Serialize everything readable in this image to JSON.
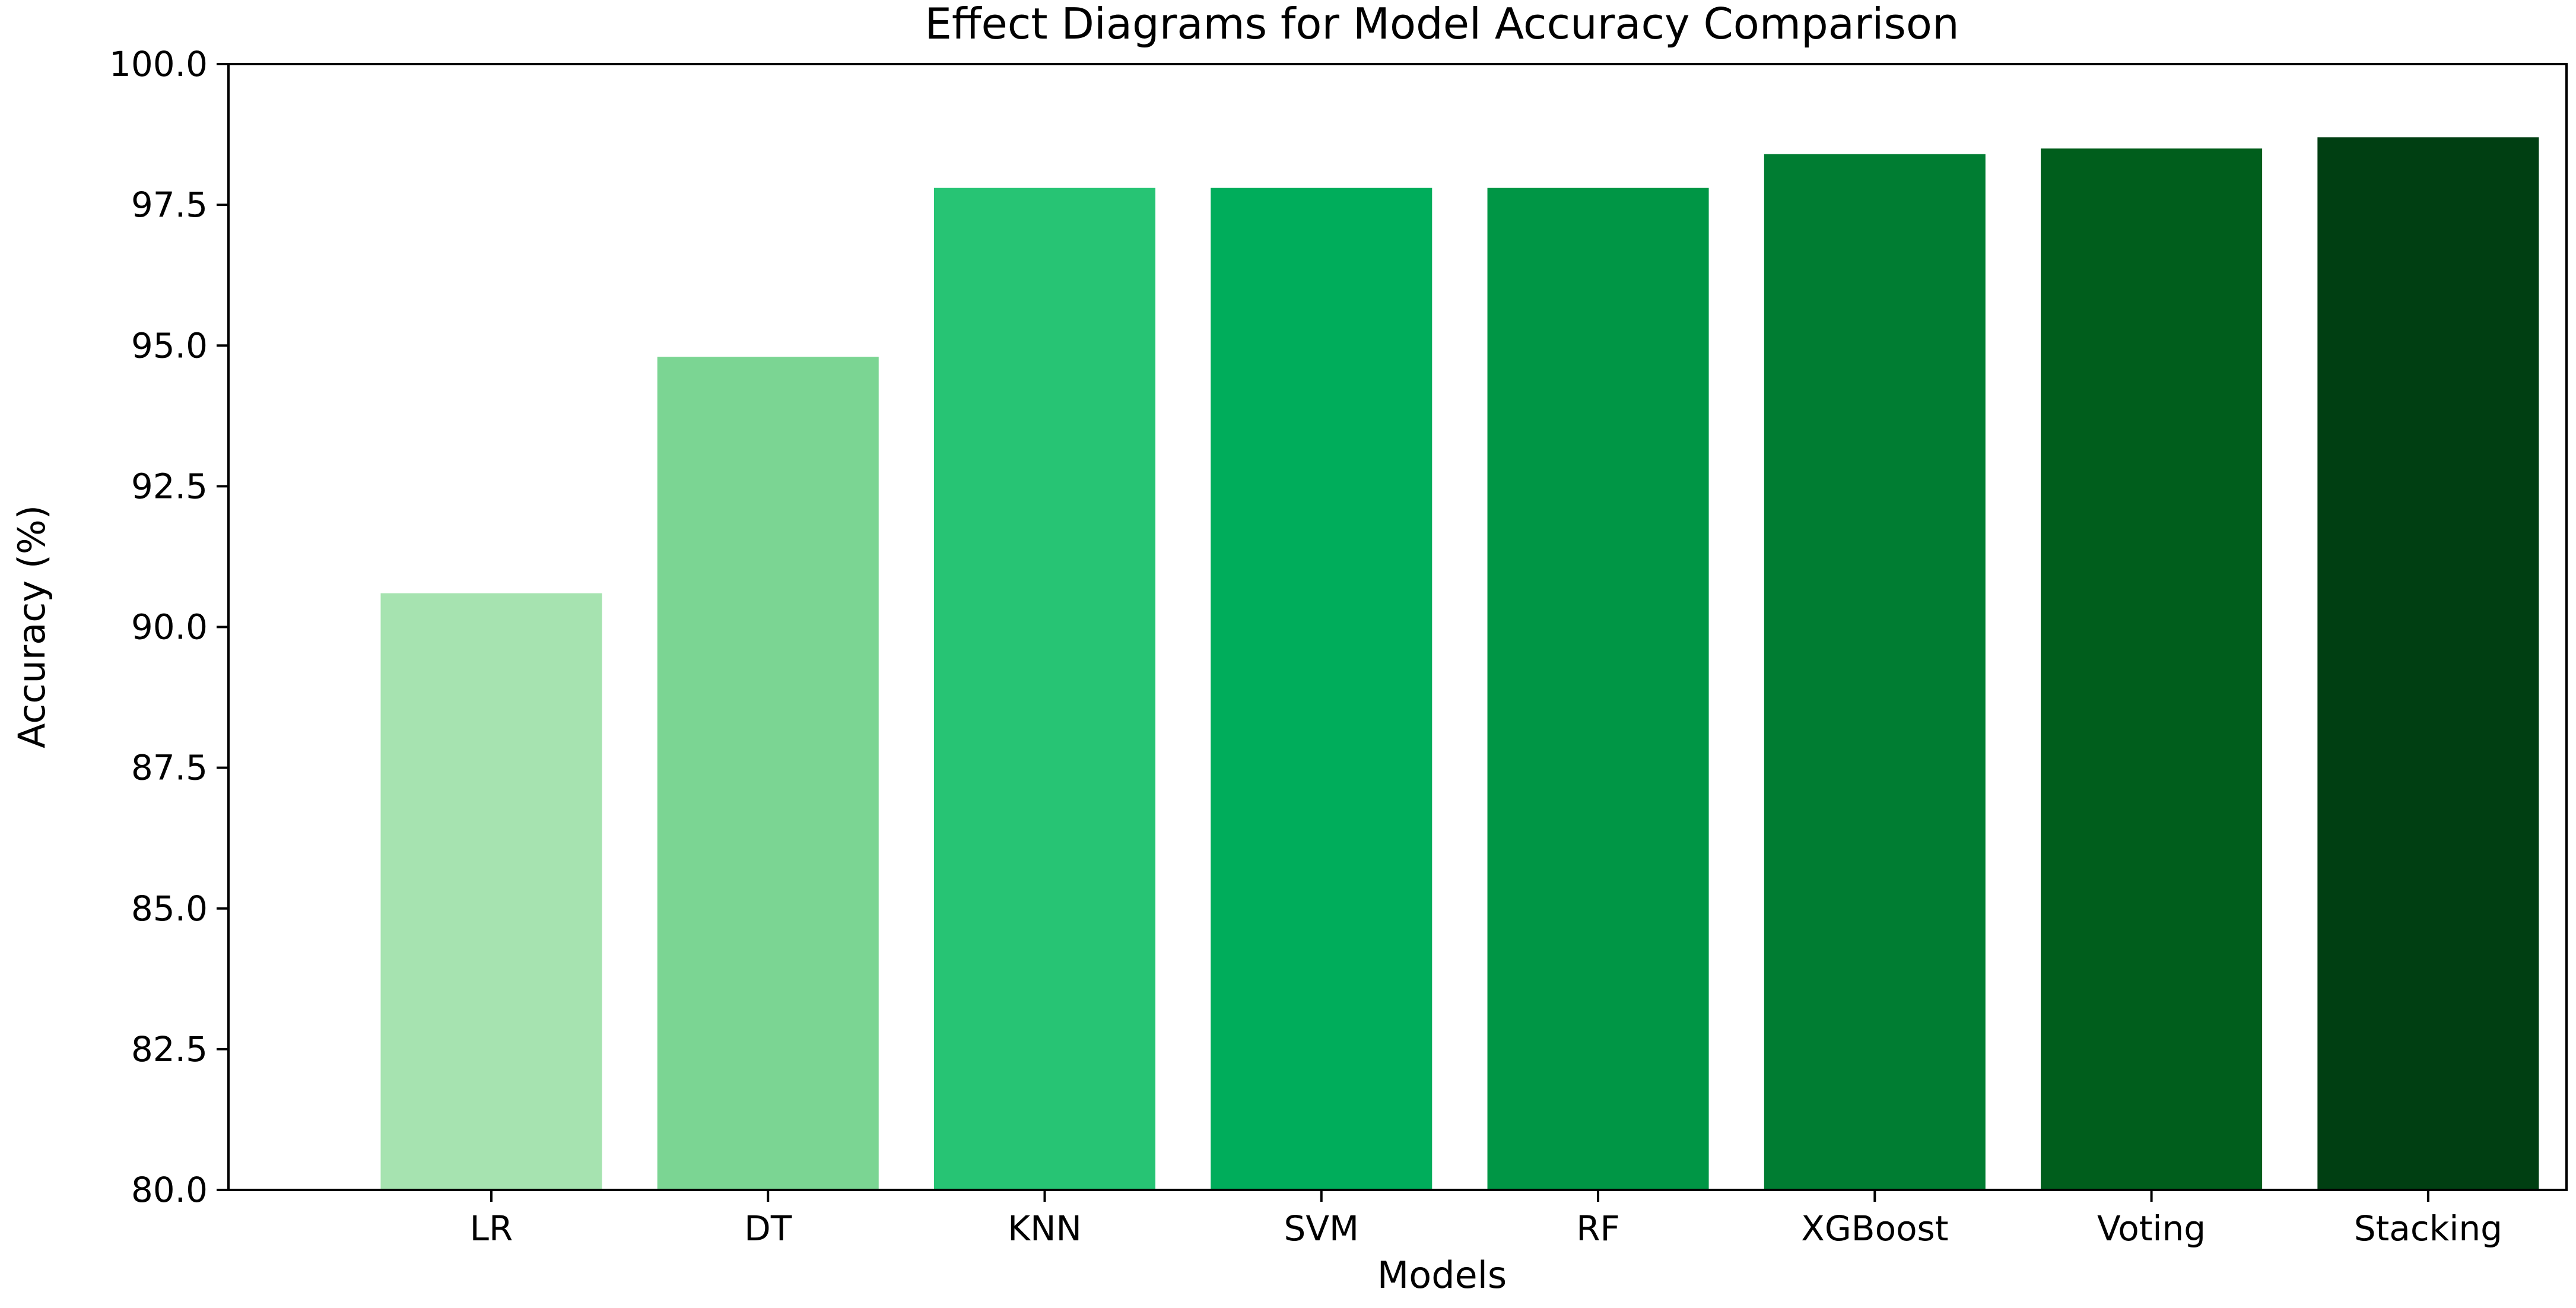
{
  "chart_data": {
    "type": "bar",
    "title": "Effect Diagrams for Model Accuracy Comparison",
    "xlabel": "Models",
    "ylabel": "Accuracy (%)",
    "categories": [
      "LR",
      "DT",
      "KNN",
      "SVM",
      "RF",
      "XGBoost",
      "Voting",
      "Stacking"
    ],
    "values": [
      90.6,
      94.8,
      97.8,
      97.8,
      97.8,
      98.4,
      98.5,
      98.7
    ],
    "colors": [
      "#a6e3b0",
      "#7bd593",
      "#27c474",
      "#00ad5b",
      "#009645",
      "#007d32",
      "#005e1c",
      "#003f12"
    ],
    "ylim": [
      80.0,
      100.0
    ],
    "yticks": [
      "80.0",
      "82.5",
      "85.0",
      "87.5",
      "90.0",
      "92.5",
      "95.0",
      "97.5",
      "100.0"
    ],
    "grid": false,
    "legend": "none"
  }
}
